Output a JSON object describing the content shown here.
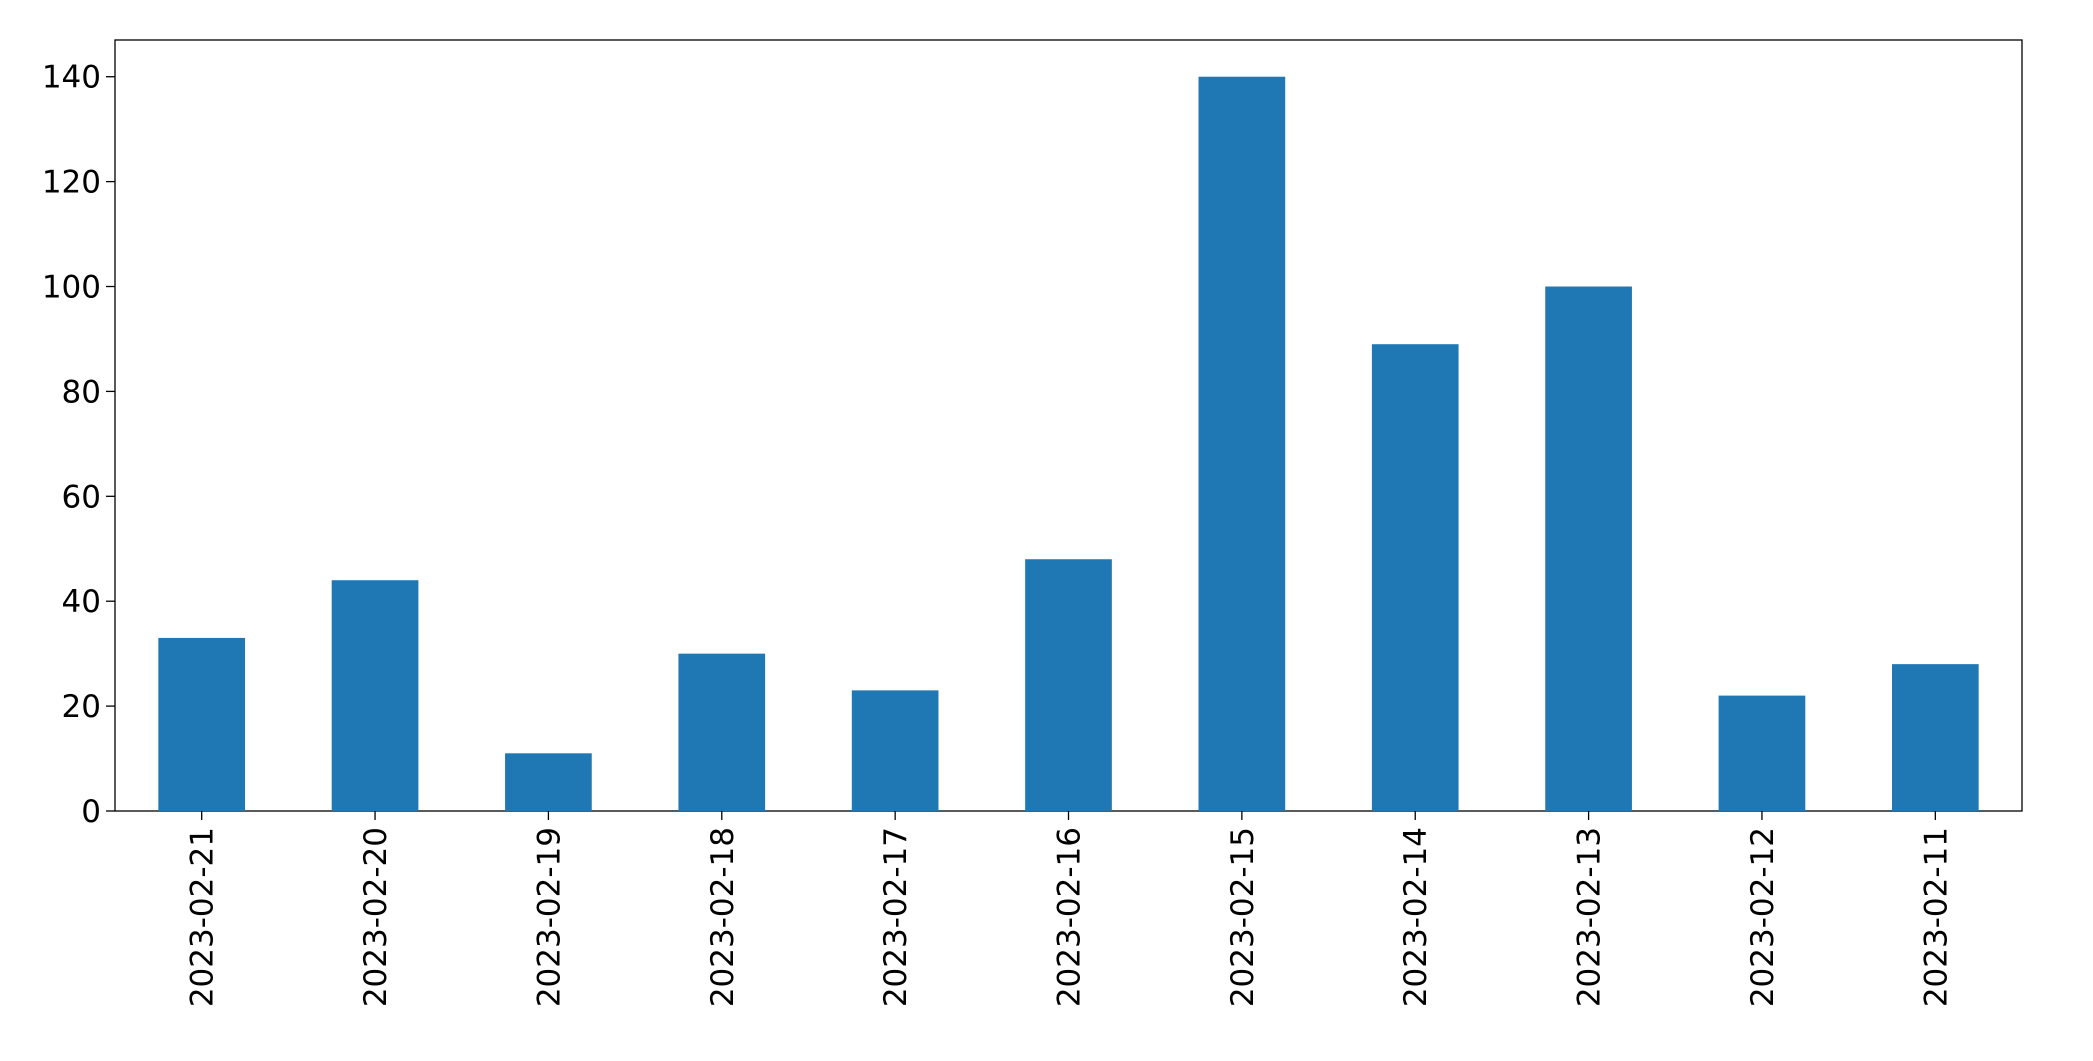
{
  "chart_data": {
    "type": "bar",
    "categories": [
      "2023-02-21",
      "2023-02-20",
      "2023-02-19",
      "2023-02-18",
      "2023-02-17",
      "2023-02-16",
      "2023-02-15",
      "2023-02-14",
      "2023-02-13",
      "2023-02-12",
      "2023-02-11"
    ],
    "values": [
      33,
      44,
      11,
      30,
      23,
      48,
      140,
      89,
      100,
      22,
      28
    ],
    "color": "#1f77b4",
    "ylim": [
      0,
      147
    ],
    "yticks": [
      0,
      20,
      40,
      60,
      80,
      100,
      120,
      140
    ],
    "grid": false
  }
}
